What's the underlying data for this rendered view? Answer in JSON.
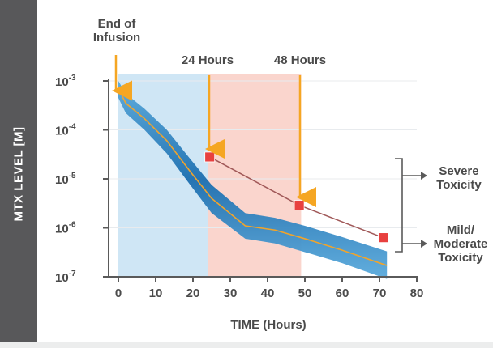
{
  "chart_data": {
    "type": "line",
    "ylabel": "MTX LEVEL [M]",
    "xlabel": "TIME (Hours)",
    "xlim": [
      0,
      80
    ],
    "xticks": [
      0,
      10,
      20,
      30,
      40,
      50,
      60,
      70,
      80
    ],
    "yscale": "log",
    "ylim": [
      1e-07,
      0.001
    ],
    "yticks": [
      {
        "base": "10",
        "exp": "-3"
      },
      {
        "base": "10",
        "exp": "-4"
      },
      {
        "base": "10",
        "exp": "-5"
      },
      {
        "base": "10",
        "exp": "-6"
      },
      {
        "base": "10",
        "exp": "-7"
      }
    ],
    "regions": [
      {
        "x0": 0,
        "x1": 24,
        "color": "#cfe6f5"
      },
      {
        "x0": 24,
        "x1": 49,
        "color": "#fad5cd"
      }
    ],
    "expected_curve": [
      {
        "x": 0,
        "y": 0.0007
      },
      {
        "x": 2,
        "y": 0.00035
      },
      {
        "x": 7,
        "y": 0.00017
      },
      {
        "x": 13,
        "y": 6e-05
      },
      {
        "x": 19,
        "y": 1.5e-05
      },
      {
        "x": 25,
        "y": 4e-06
      },
      {
        "x": 34,
        "y": 1.1e-06
      },
      {
        "x": 42,
        "y": 9e-07
      },
      {
        "x": 50,
        "y": 6e-07
      },
      {
        "x": 60,
        "y": 3.5e-07
      },
      {
        "x": 72,
        "y": 1.7e-07
      }
    ],
    "band_upper": [
      {
        "x": 0,
        "y": 0.001
      },
      {
        "x": 2,
        "y": 0.00055
      },
      {
        "x": 7,
        "y": 0.00027
      },
      {
        "x": 13,
        "y": 0.0001
      },
      {
        "x": 19,
        "y": 2.7e-05
      },
      {
        "x": 25,
        "y": 7.5e-06
      },
      {
        "x": 34,
        "y": 2e-06
      },
      {
        "x": 42,
        "y": 1.6e-06
      },
      {
        "x": 50,
        "y": 1.1e-06
      },
      {
        "x": 60,
        "y": 6.5e-07
      },
      {
        "x": 72,
        "y": 3.3e-07
      }
    ],
    "band_lower": [
      {
        "x": 0,
        "y": 0.00045
      },
      {
        "x": 2,
        "y": 0.00022
      },
      {
        "x": 7,
        "y": 0.0001
      },
      {
        "x": 13,
        "y": 3.3e-05
      },
      {
        "x": 19,
        "y": 8e-06
      },
      {
        "x": 25,
        "y": 2e-06
      },
      {
        "x": 34,
        "y": 6e-07
      },
      {
        "x": 42,
        "y": 4.8e-07
      },
      {
        "x": 50,
        "y": 3.2e-07
      },
      {
        "x": 60,
        "y": 1.9e-07
      },
      {
        "x": 72,
        "y": 9e-08
      }
    ],
    "toxicity_points": [
      {
        "x": 24.5,
        "y": 2.8e-05
      },
      {
        "x": 48.5,
        "y": 2.9e-06
      },
      {
        "x": 71,
        "y": 6.3e-07
      }
    ],
    "annotations": [
      {
        "lines": [
          "End of",
          "Infusion"
        ],
        "x": 0
      },
      {
        "lines": [
          "24 Hours"
        ],
        "x": 24
      },
      {
        "lines": [
          "48 Hours"
        ],
        "x": 49
      }
    ],
    "toxicity_labels": [
      {
        "lines": [
          "Severe",
          "Toxicity"
        ]
      },
      {
        "lines": [
          "Mild/",
          "Moderate",
          "Toxicity"
        ]
      }
    ],
    "colors": {
      "band_dark": "#1c6eaf",
      "band_light": "#5aaadc",
      "curve": "#f2a42a",
      "arrow": "#f5a623",
      "marker": "#e8403f",
      "marker_line": "#a05858",
      "axis": "#5a5a5a",
      "grid": "#e8ebee"
    }
  }
}
